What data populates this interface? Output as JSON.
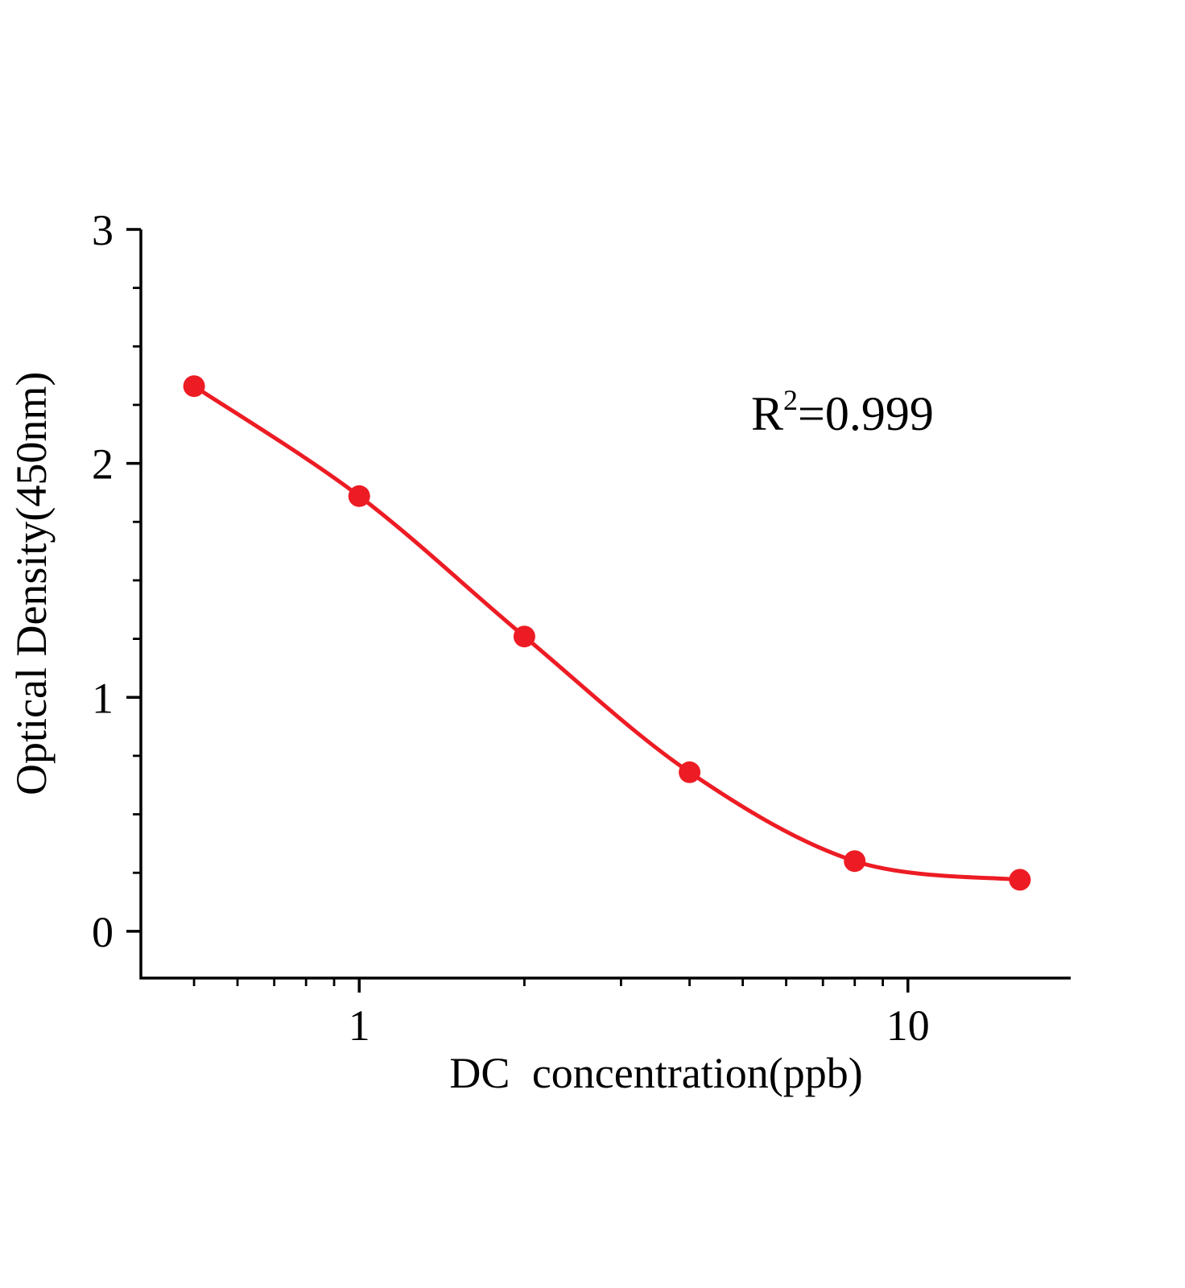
{
  "chart_data": {
    "type": "scatter",
    "title": "",
    "xlabel": "DC concentration(ppb)",
    "ylabel": "Optical Density(450nm)",
    "x_scale": "log10",
    "y_scale": "linear",
    "x": [
      0.5,
      1,
      2,
      4,
      8,
      16
    ],
    "y": [
      2.33,
      1.86,
      1.26,
      0.68,
      0.3,
      0.22
    ],
    "line": "smooth sigmoidal curve through all points",
    "xlim": [
      0.4,
      19.8
    ],
    "ylim": [
      -0.2,
      3
    ],
    "x_major_ticks": [
      1,
      10
    ],
    "x_major_tick_labels": [
      "1",
      "10"
    ],
    "x_minor_ticks": [
      0.5,
      0.6,
      0.7,
      0.8,
      0.9,
      2,
      3,
      4,
      5,
      6,
      7,
      8,
      9
    ],
    "y_major_ticks": [
      0,
      1,
      2,
      3
    ],
    "y_major_tick_labels": [
      "0",
      "1",
      "2",
      "3"
    ],
    "y_minor_ticks": [
      0.25,
      0.5,
      0.75,
      1.25,
      1.5,
      1.75,
      2.25,
      2.5,
      2.75
    ],
    "grid": false,
    "legend": "none",
    "annotation": {
      "text": "R2=0.999",
      "base": "R",
      "exponent": "2",
      "value": "=0.999"
    },
    "colors": {
      "curve": "#ed1c24",
      "marker": "#ed1c24",
      "axis": "#000000",
      "background": "#ffffff"
    }
  }
}
